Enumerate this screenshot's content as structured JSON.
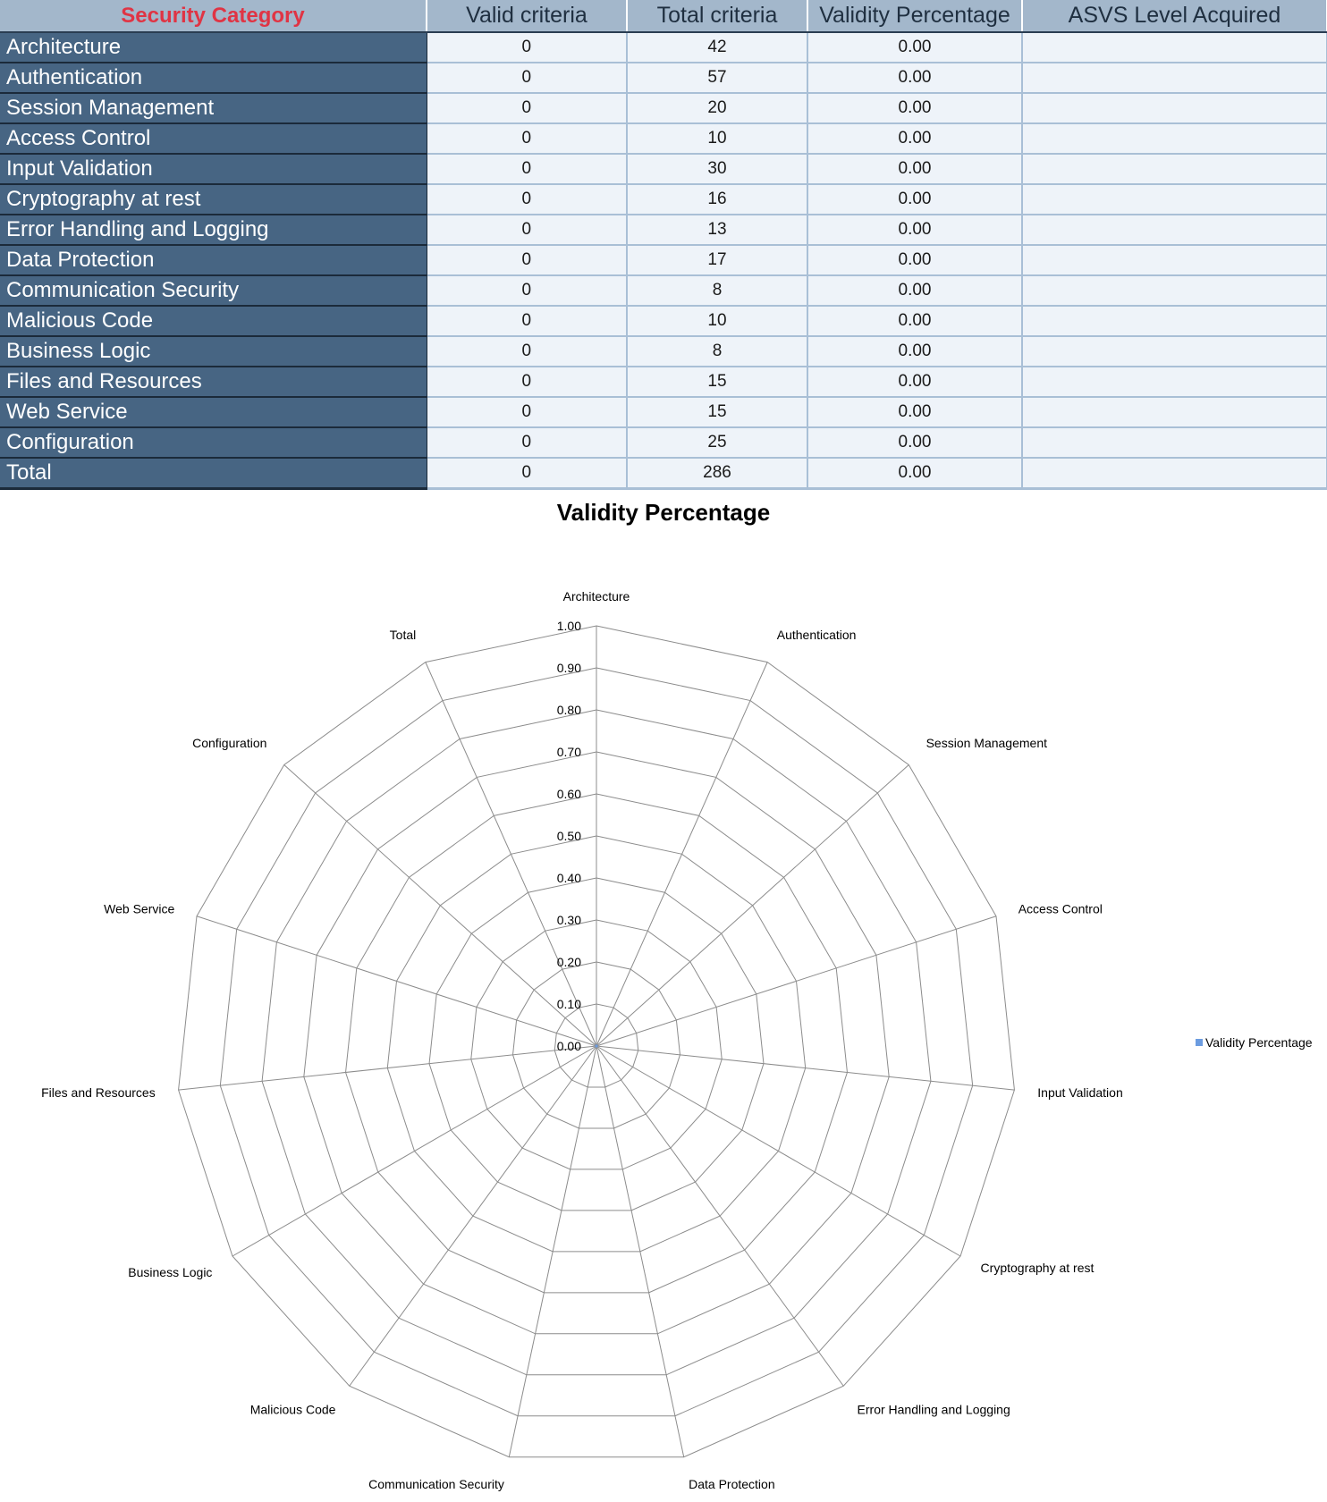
{
  "table": {
    "headers": [
      "Security Category",
      "Valid criteria",
      "Total criteria",
      "Validity Percentage",
      "ASVS Level Acquired"
    ],
    "rows": [
      {
        "category": "Architecture",
        "valid": "0",
        "total": "42",
        "pct": "0.00",
        "level": ""
      },
      {
        "category": "Authentication",
        "valid": "0",
        "total": "57",
        "pct": "0.00",
        "level": ""
      },
      {
        "category": "Session Management",
        "valid": "0",
        "total": "20",
        "pct": "0.00",
        "level": ""
      },
      {
        "category": "Access Control",
        "valid": "0",
        "total": "10",
        "pct": "0.00",
        "level": ""
      },
      {
        "category": "Input Validation",
        "valid": "0",
        "total": "30",
        "pct": "0.00",
        "level": ""
      },
      {
        "category": "Cryptography at rest",
        "valid": "0",
        "total": "16",
        "pct": "0.00",
        "level": ""
      },
      {
        "category": "Error Handling and Logging",
        "valid": "0",
        "total": "13",
        "pct": "0.00",
        "level": ""
      },
      {
        "category": "Data Protection",
        "valid": "0",
        "total": "17",
        "pct": "0.00",
        "level": ""
      },
      {
        "category": "Communication Security",
        "valid": "0",
        "total": "8",
        "pct": "0.00",
        "level": ""
      },
      {
        "category": "Malicious Code",
        "valid": "0",
        "total": "10",
        "pct": "0.00",
        "level": ""
      },
      {
        "category": "Business Logic",
        "valid": "0",
        "total": "8",
        "pct": "0.00",
        "level": ""
      },
      {
        "category": "Files and Resources",
        "valid": "0",
        "total": "15",
        "pct": "0.00",
        "level": ""
      },
      {
        "category": "Web Service",
        "valid": "0",
        "total": "15",
        "pct": "0.00",
        "level": ""
      },
      {
        "category": "Configuration",
        "valid": "0",
        "total": "25",
        "pct": "0.00",
        "level": ""
      },
      {
        "category": "Total",
        "valid": "0",
        "total": "286",
        "pct": "0.00",
        "level": ""
      }
    ]
  },
  "chart_data": {
    "type": "radar",
    "title": "Validity Percentage",
    "categories": [
      "Architecture",
      "Authentication",
      "Session Management",
      "Access Control",
      "Input Validation",
      "Cryptography at rest",
      "Error Handling and Logging",
      "Data Protection",
      "Communication Security",
      "Malicious Code",
      "Business Logic",
      "Files and Resources",
      "Web Service",
      "Configuration",
      "Total"
    ],
    "series": [
      {
        "name": "Validity Percentage",
        "values": [
          0,
          0,
          0,
          0,
          0,
          0,
          0,
          0,
          0,
          0,
          0,
          0,
          0,
          0,
          0
        ],
        "color": "#6c9ce0"
      }
    ],
    "rlim": [
      0,
      1
    ],
    "ticks": [
      "0.00",
      "0.10",
      "0.20",
      "0.30",
      "0.40",
      "0.50",
      "0.60",
      "0.70",
      "0.80",
      "0.90",
      "1.00"
    ],
    "grid": true,
    "legend_position": "right",
    "grid_color": "#8c8c8c"
  }
}
